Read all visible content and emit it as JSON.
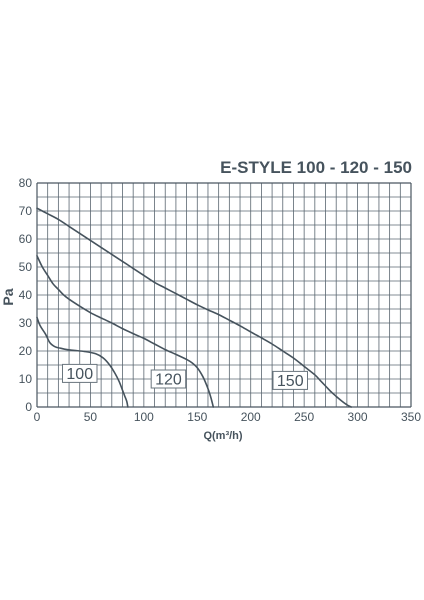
{
  "chart_data": {
    "type": "line",
    "title": "E-STYLE 100 - 120 - 150",
    "xlabel": "Q(m³/h)",
    "ylabel": "Pa",
    "xlim": [
      0,
      350
    ],
    "ylim": [
      0,
      80
    ],
    "x_ticks": [
      0,
      50,
      100,
      150,
      200,
      250,
      300,
      350
    ],
    "y_ticks": [
      0,
      10,
      20,
      30,
      40,
      50,
      60,
      70,
      80
    ],
    "grid_x_step": 10,
    "grid_y_step": 5,
    "grid": true,
    "legend": "inline labels near curves",
    "colors": {
      "curve": "#46535d",
      "grid": "#5a6670",
      "text": "#46535d"
    },
    "series": [
      {
        "name": "100",
        "label_at": [
          40,
          12
        ],
        "x": [
          0,
          3,
          8,
          12,
          17,
          22,
          28,
          35,
          45,
          55,
          62,
          68,
          73,
          77,
          80,
          82,
          84,
          85
        ],
        "y": [
          32,
          29,
          26,
          23,
          21.5,
          21,
          20.5,
          20.2,
          19.8,
          19,
          17.5,
          15,
          12,
          9,
          6,
          4,
          2,
          0
        ]
      },
      {
        "name": "120",
        "label_at": [
          123,
          10
        ],
        "x": [
          0,
          5,
          10,
          15,
          20,
          25,
          30,
          40,
          50,
          60,
          70,
          80,
          90,
          100,
          110,
          120,
          130,
          140,
          145,
          150,
          155,
          158,
          161,
          163,
          165
        ],
        "y": [
          54,
          50,
          47,
          44,
          42,
          40,
          38.5,
          36,
          33.7,
          31.8,
          30,
          28,
          26.2,
          24.5,
          22.5,
          20.5,
          18.8,
          17,
          15.8,
          14,
          11,
          8.5,
          5.5,
          3,
          0
        ]
      },
      {
        "name": "150",
        "label_at": [
          237,
          9.5
        ],
        "x": [
          0,
          10,
          20,
          30,
          40,
          50,
          60,
          70,
          80,
          90,
          100,
          110,
          120,
          130,
          140,
          150,
          160,
          170,
          180,
          190,
          200,
          210,
          220,
          230,
          240,
          250,
          260,
          265,
          270,
          275,
          280,
          285,
          290,
          294
        ],
        "y": [
          71,
          69,
          67,
          64.5,
          62,
          59.5,
          57,
          54.5,
          52,
          49.5,
          47,
          44.5,
          42.5,
          40.5,
          38.5,
          36.5,
          34.7,
          33,
          31,
          29,
          26.8,
          24.7,
          22.5,
          20,
          17.5,
          14.5,
          11.5,
          9.5,
          7.5,
          5.5,
          3.8,
          2.2,
          0.8,
          0
        ]
      }
    ]
  }
}
